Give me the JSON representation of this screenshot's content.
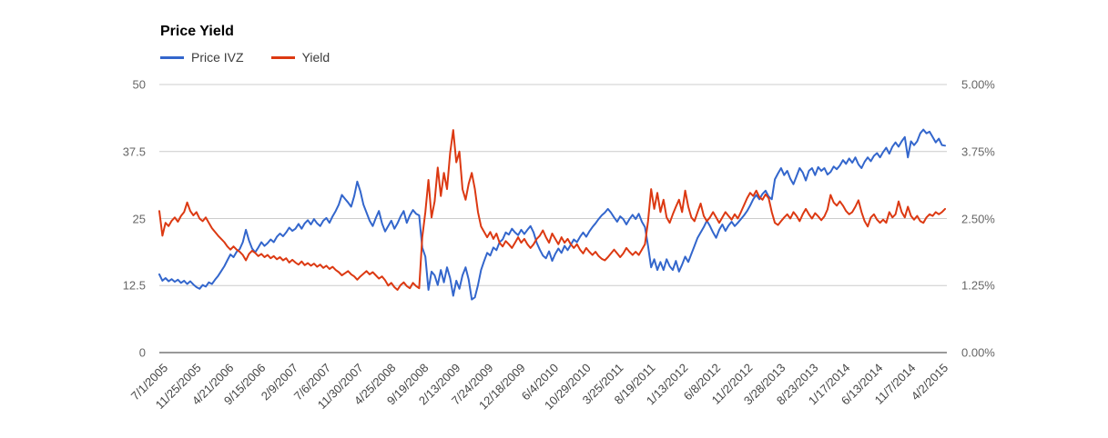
{
  "chart_data": {
    "type": "line",
    "title": "Price Yield",
    "grid": true,
    "legend_position": "top-left",
    "x_start_date": "7/1/2005",
    "x_tick_labels": [
      "7/1/2005",
      "11/25/2005",
      "4/21/2006",
      "9/15/2006",
      "2/9/2007",
      "7/6/2007",
      "11/30/2007",
      "4/25/2008",
      "9/19/2008",
      "2/13/2009",
      "7/24/2009",
      "12/18/2009",
      "6/4/2010",
      "10/29/2010",
      "3/25/2011",
      "8/19/2011",
      "1/13/2012",
      "6/8/2012",
      "11/2/2012",
      "3/28/2013",
      "8/23/2013",
      "1/17/2014",
      "6/13/2014",
      "11/7/2014",
      "4/2/2015"
    ],
    "x_label_every_weeks": 21,
    "sample_step_weeks": 2,
    "left_axis": {
      "ticks": [
        "0",
        "12.5",
        "25",
        "37.5",
        "50"
      ],
      "range": [
        0,
        50
      ]
    },
    "right_axis": {
      "ticks": [
        "0.00%",
        "1.25%",
        "2.50%",
        "3.75%",
        "5.00%"
      ],
      "range": [
        0,
        5
      ]
    },
    "axis_colors": {
      "gridline": "#cccccc",
      "baseline": "#333333",
      "y_label": "#666666",
      "x_label": "#444444"
    },
    "series": [
      {
        "name": "Price IVZ",
        "axis": "left",
        "color": "#3366CC",
        "values": [
          14.6,
          13.4,
          13.9,
          13.3,
          13.7,
          13.2,
          13.6,
          13.0,
          13.4,
          12.8,
          13.3,
          12.7,
          12.2,
          11.9,
          12.6,
          12.3,
          13.1,
          12.8,
          13.6,
          14.3,
          15.2,
          16.1,
          17.2,
          18.3,
          17.8,
          18.8,
          19.3,
          20.6,
          22.9,
          20.9,
          19.4,
          18.7,
          19.6,
          20.6,
          19.9,
          20.4,
          21.1,
          20.6,
          21.6,
          22.2,
          21.7,
          22.4,
          23.3,
          22.7,
          23.1,
          24.0,
          23.1,
          24.1,
          24.7,
          23.9,
          24.9,
          24.1,
          23.6,
          24.6,
          25.1,
          24.2,
          25.4,
          26.4,
          27.6,
          29.4,
          28.7,
          28.0,
          27.2,
          29.2,
          31.9,
          30.1,
          27.6,
          26.1,
          24.6,
          23.6,
          25.1,
          26.4,
          24.1,
          22.6,
          23.6,
          24.6,
          23.1,
          24.1,
          25.4,
          26.4,
          24.2,
          25.6,
          26.6,
          25.9,
          25.6,
          19.6,
          17.9,
          11.7,
          15.1,
          14.4,
          12.6,
          15.4,
          13.1,
          15.9,
          13.9,
          10.6,
          13.4,
          11.9,
          14.4,
          15.9,
          13.6,
          9.9,
          10.3,
          12.6,
          15.4,
          17.1,
          18.6,
          18.1,
          19.6,
          19.1,
          20.6,
          21.1,
          22.4,
          22.0,
          23.1,
          22.4,
          21.9,
          22.9,
          22.1,
          22.9,
          23.6,
          22.4,
          20.5,
          19.2,
          18.1,
          17.6,
          18.9,
          17.1,
          18.4,
          19.4,
          18.6,
          19.9,
          19.1,
          20.1,
          21.1,
          20.6,
          21.6,
          22.4,
          21.6,
          22.6,
          23.4,
          24.1,
          24.9,
          25.6,
          26.1,
          26.8,
          26.1,
          25.2,
          24.4,
          25.4,
          24.9,
          23.9,
          24.9,
          25.7,
          24.9,
          25.9,
          24.4,
          23.4,
          19.9,
          15.9,
          17.4,
          15.4,
          16.9,
          15.4,
          17.4,
          16.1,
          15.4,
          17.1,
          15.1,
          16.4,
          17.9,
          16.9,
          18.4,
          19.9,
          21.4,
          22.4,
          23.4,
          24.6,
          23.6,
          22.4,
          21.4,
          22.9,
          23.9,
          22.7,
          23.7,
          24.4,
          23.6,
          24.2,
          24.9,
          25.6,
          26.4,
          27.4,
          28.6,
          29.4,
          28.6,
          29.6,
          30.2,
          29.1,
          28.6,
          32.3,
          33.4,
          34.4,
          33.1,
          33.9,
          32.4,
          31.4,
          32.9,
          34.4,
          33.6,
          32.1,
          33.9,
          34.4,
          33.1,
          34.6,
          33.9,
          34.4,
          33.2,
          33.7,
          34.7,
          34.2,
          34.9,
          35.9,
          35.2,
          36.2,
          35.4,
          36.4,
          35.1,
          34.4,
          35.6,
          36.4,
          35.7,
          36.7,
          37.2,
          36.4,
          37.4,
          38.2,
          37.1,
          38.4,
          39.2,
          38.4,
          39.4,
          40.2,
          36.4,
          39.4,
          38.7,
          39.4,
          40.9,
          41.6,
          40.9,
          41.2,
          40.2,
          39.2,
          39.9,
          38.7,
          38.6
        ]
      },
      {
        "name": "Yield",
        "axis": "right",
        "color": "#DC3912",
        "values": [
          2.64,
          2.18,
          2.42,
          2.36,
          2.46,
          2.52,
          2.44,
          2.55,
          2.62,
          2.8,
          2.64,
          2.56,
          2.62,
          2.5,
          2.45,
          2.52,
          2.42,
          2.32,
          2.25,
          2.18,
          2.12,
          2.06,
          1.98,
          1.92,
          1.98,
          1.92,
          1.88,
          1.82,
          1.72,
          1.84,
          1.9,
          1.86,
          1.8,
          1.84,
          1.78,
          1.82,
          1.76,
          1.8,
          1.74,
          1.78,
          1.72,
          1.76,
          1.68,
          1.73,
          1.68,
          1.64,
          1.7,
          1.63,
          1.67,
          1.62,
          1.66,
          1.6,
          1.64,
          1.58,
          1.62,
          1.56,
          1.6,
          1.54,
          1.5,
          1.44,
          1.48,
          1.52,
          1.46,
          1.42,
          1.36,
          1.42,
          1.47,
          1.52,
          1.46,
          1.5,
          1.44,
          1.38,
          1.42,
          1.35,
          1.25,
          1.3,
          1.22,
          1.17,
          1.26,
          1.31,
          1.24,
          1.2,
          1.3,
          1.24,
          1.2,
          2.15,
          2.62,
          3.22,
          2.52,
          2.82,
          3.45,
          2.92,
          3.35,
          3.05,
          3.72,
          4.15,
          3.55,
          3.75,
          3.05,
          2.85,
          3.15,
          3.35,
          3.05,
          2.62,
          2.35,
          2.25,
          2.15,
          2.25,
          2.12,
          2.22,
          2.05,
          1.98,
          2.08,
          2.02,
          1.95,
          2.05,
          2.15,
          2.05,
          2.12,
          2.02,
          1.95,
          2.02,
          2.12,
          2.18,
          2.28,
          2.15,
          2.05,
          2.22,
          2.12,
          2.02,
          2.15,
          2.05,
          2.12,
          2.02,
          1.95,
          2.02,
          1.92,
          1.85,
          1.95,
          1.88,
          1.82,
          1.88,
          1.8,
          1.75,
          1.72,
          1.78,
          1.85,
          1.92,
          1.85,
          1.78,
          1.85,
          1.95,
          1.88,
          1.82,
          1.88,
          1.82,
          1.92,
          2.02,
          2.45,
          3.05,
          2.68,
          2.98,
          2.62,
          2.85,
          2.52,
          2.42,
          2.58,
          2.72,
          2.85,
          2.62,
          3.02,
          2.72,
          2.52,
          2.45,
          2.62,
          2.78,
          2.55,
          2.45,
          2.52,
          2.62,
          2.52,
          2.42,
          2.52,
          2.62,
          2.55,
          2.48,
          2.58,
          2.5,
          2.62,
          2.75,
          2.88,
          2.98,
          2.92,
          3.02,
          2.9,
          2.85,
          2.95,
          2.88,
          2.62,
          2.42,
          2.38,
          2.45,
          2.52,
          2.58,
          2.5,
          2.62,
          2.55,
          2.45,
          2.58,
          2.68,
          2.58,
          2.5,
          2.6,
          2.54,
          2.47,
          2.54,
          2.67,
          2.94,
          2.8,
          2.74,
          2.82,
          2.74,
          2.64,
          2.58,
          2.62,
          2.72,
          2.84,
          2.62,
          2.45,
          2.35,
          2.52,
          2.58,
          2.48,
          2.42,
          2.48,
          2.42,
          2.62,
          2.52,
          2.58,
          2.82,
          2.62,
          2.52,
          2.72,
          2.55,
          2.48,
          2.55,
          2.45,
          2.42,
          2.52,
          2.58,
          2.55,
          2.62,
          2.58,
          2.62,
          2.68
        ]
      }
    ]
  }
}
